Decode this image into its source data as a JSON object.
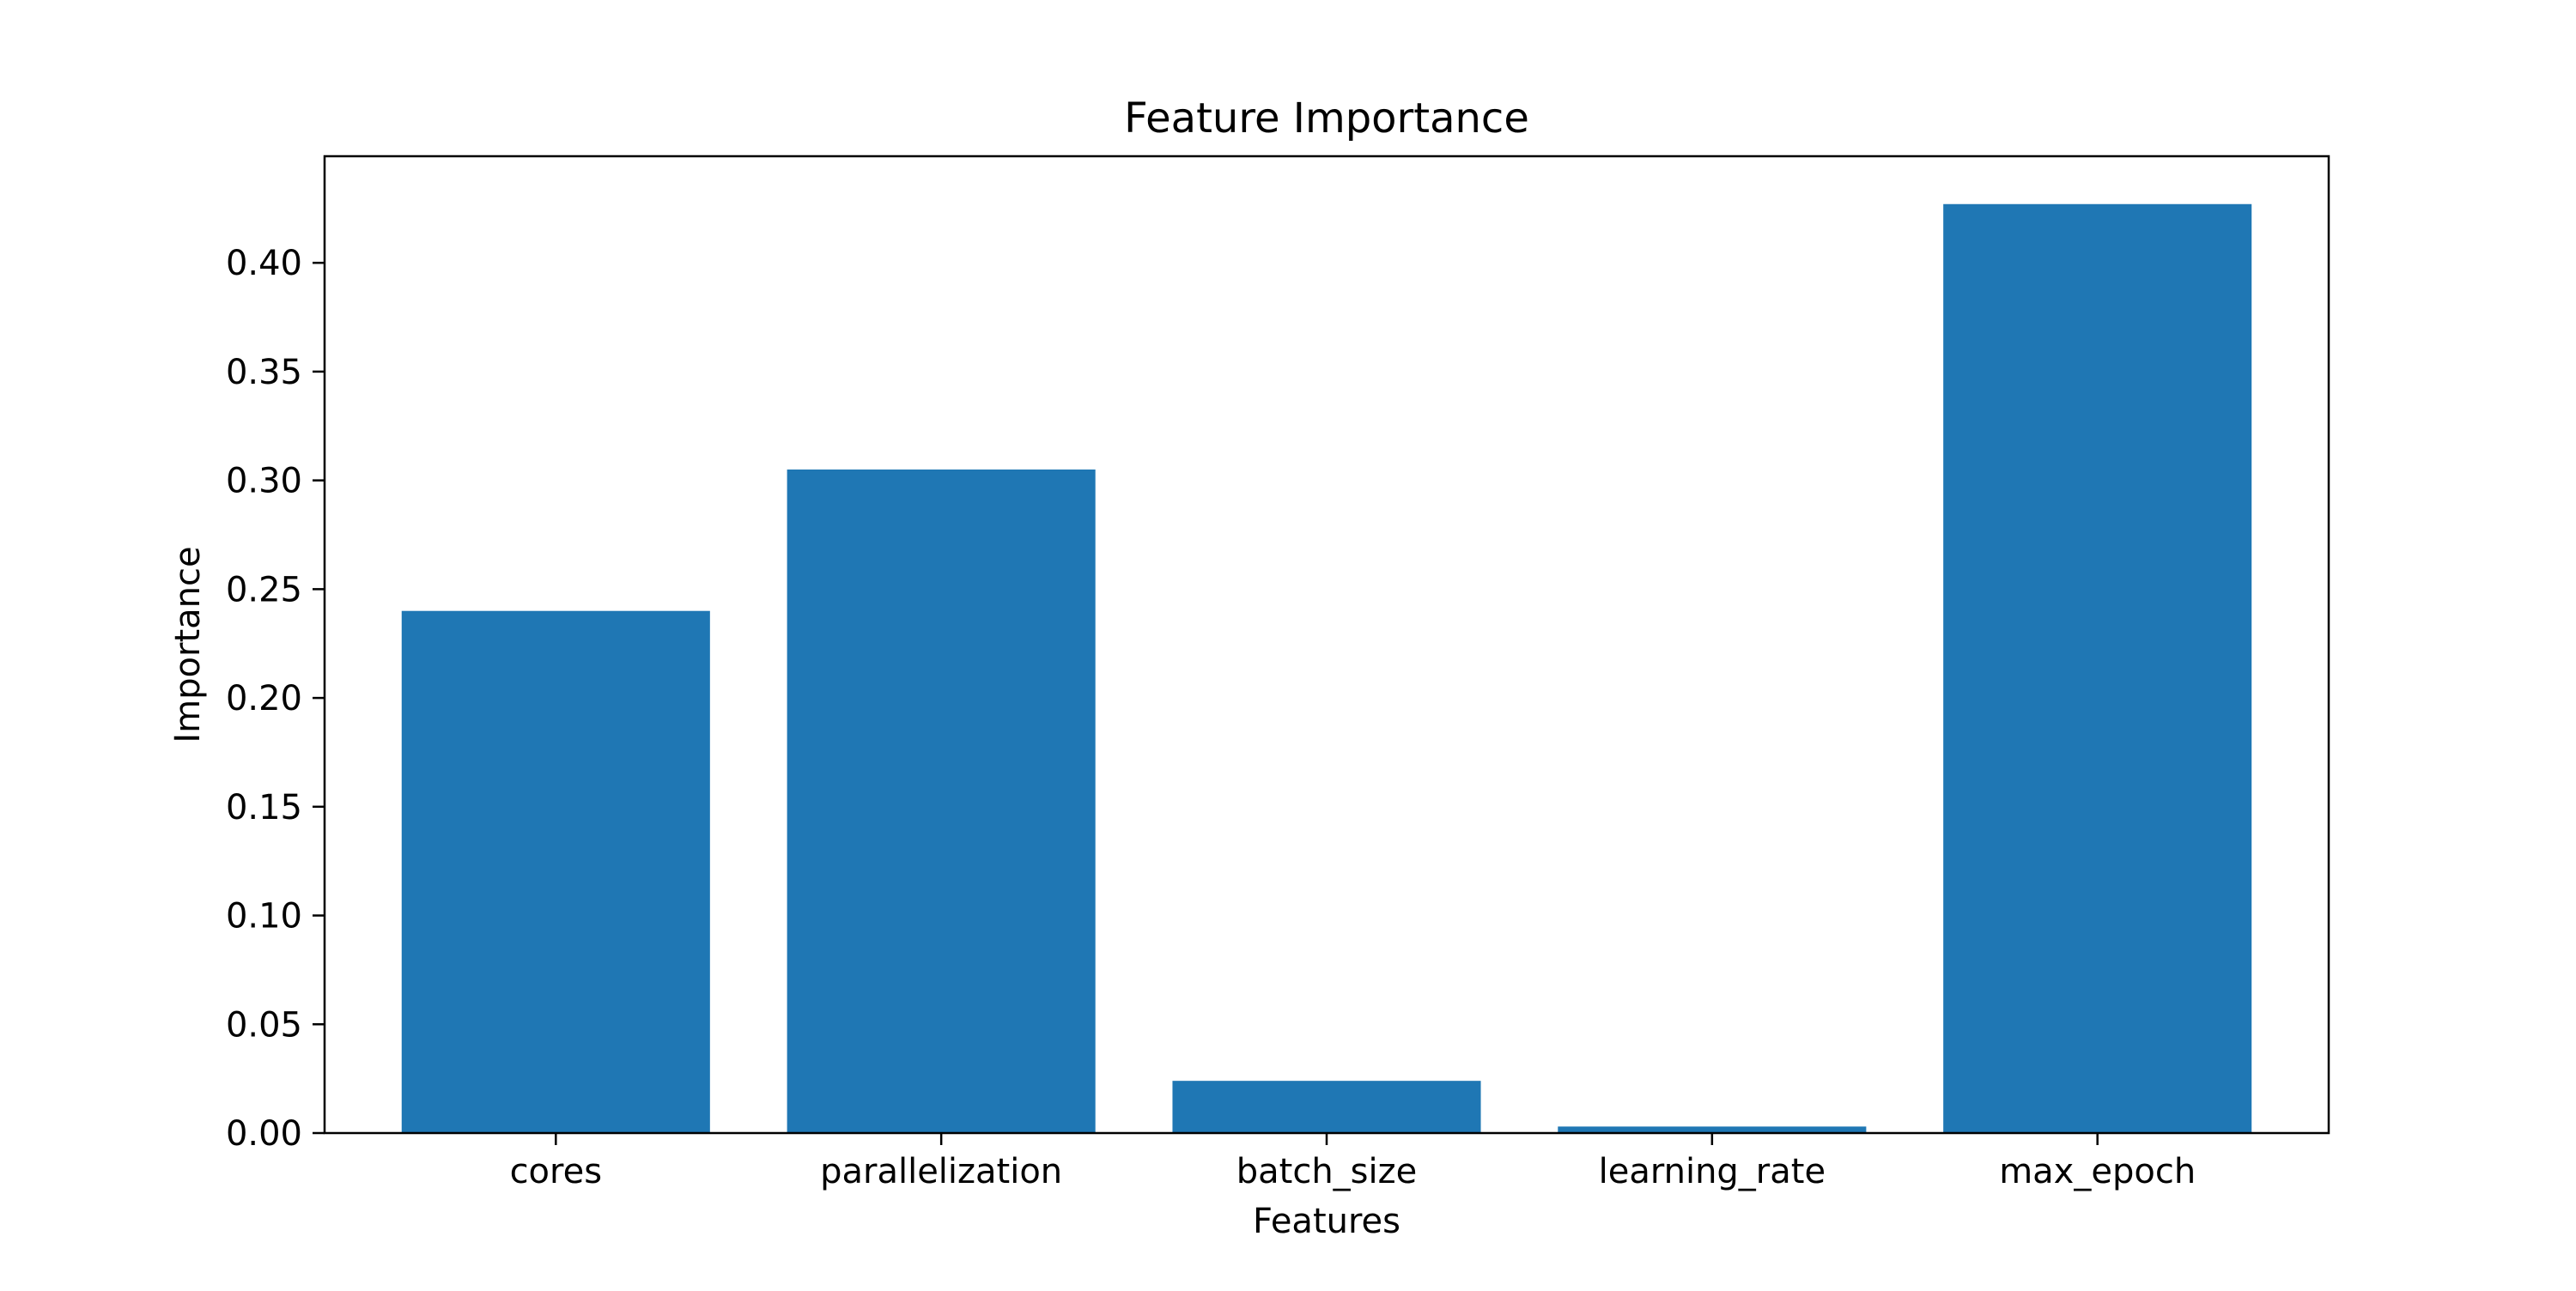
{
  "chart_data": {
    "type": "bar",
    "title": "Feature Importance",
    "xlabel": "Features",
    "ylabel": "Importance",
    "categories": [
      "cores",
      "parallelization",
      "batch_size",
      "learning_rate",
      "max_epoch"
    ],
    "values": [
      0.24,
      0.305,
      0.024,
      0.003,
      0.427
    ],
    "ylim": [
      0,
      0.449
    ],
    "yticks": [
      0.0,
      0.05,
      0.1,
      0.15,
      0.2,
      0.25,
      0.3,
      0.35,
      0.4
    ],
    "ytick_labels": [
      "0.00",
      "0.05",
      "0.10",
      "0.15",
      "0.20",
      "0.25",
      "0.30",
      "0.35",
      "0.40"
    ],
    "bar_color": "#1f77b4",
    "grid": false,
    "legend": "none"
  }
}
